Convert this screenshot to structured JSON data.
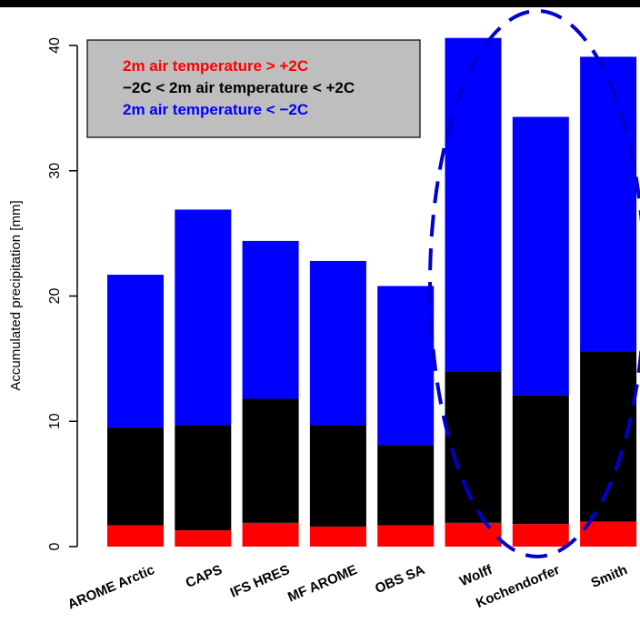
{
  "chart_data": {
    "type": "bar",
    "stacked": true,
    "ylabel": "Accumulated precipitation [mm]",
    "ylim": [
      0,
      40
    ],
    "yticks": [
      "0",
      "10",
      "20",
      "30",
      "40"
    ],
    "categories": [
      "AROME Arctic",
      "CAPS",
      "IFS HRES",
      "MF AROME",
      "OBS SA",
      "Wolff",
      "Kochendorfer",
      "Smith"
    ],
    "series": [
      {
        "name": "2m air temperature > +2C",
        "color": "#ff0000",
        "values": [
          1.7,
          1.3,
          1.9,
          1.6,
          1.7,
          1.9,
          1.8,
          2.0
        ]
      },
      {
        "name": "−2C < 2m air temperature < +2C",
        "color": "#000000",
        "values": [
          7.8,
          8.4,
          9.9,
          8.1,
          6.4,
          12.1,
          10.3,
          13.6
        ]
      },
      {
        "name": "2m air temperature < −2C",
        "color": "#0000ff",
        "values": [
          12.2,
          17.2,
          12.6,
          13.1,
          12.7,
          26.6,
          22.2,
          23.5
        ]
      }
    ],
    "legend": {
      "position": "top-left",
      "background": "#bebebe",
      "entries": [
        "2m air temperature > +2C",
        "−2C < 2m air temperature < +2C",
        "2m air temperature < −2C"
      ],
      "colors": [
        "#ff0000",
        "#000000",
        "#0000ff"
      ]
    },
    "annotation": {
      "type": "dashed-ellipse",
      "color": "#0000cc",
      "encloses": [
        "Wolff",
        "Kochendorfer",
        "Smith"
      ]
    }
  }
}
